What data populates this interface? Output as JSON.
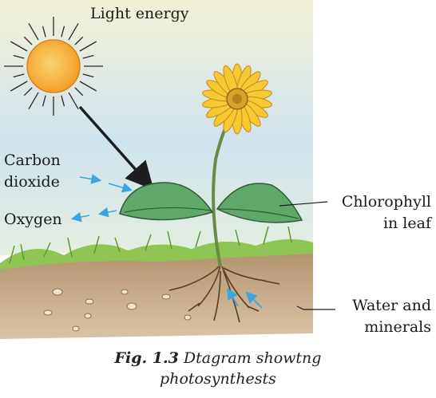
{
  "labels": {
    "light_energy": "Light energy",
    "carbon_dioxide_line1": "Carbon",
    "carbon_dioxide_line2": "dioxide",
    "oxygen": "Oxygen",
    "chlorophyll_line1": "Chlorophyll",
    "chlorophyll_line2": "in leaf",
    "water_line1": "Water and",
    "water_line2": "minerals"
  },
  "caption": {
    "number": "Fig. 1.3",
    "text_line1": "Dtagram showtng",
    "text_line2": "photosynthests"
  },
  "colors": {
    "sky": "#cfe3ee",
    "sun": "#f6a632",
    "ray": "#2a2a2a",
    "leaf": "#5fa86a",
    "grass": "#7fb843",
    "soil": "#c9b192",
    "petal": "#f6c933",
    "arrow_blue": "#3aa6dd"
  }
}
